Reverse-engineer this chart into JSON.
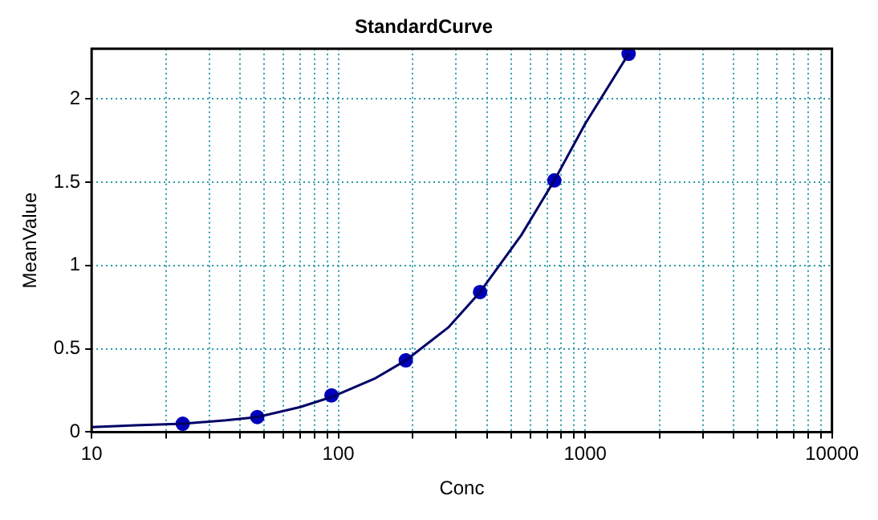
{
  "chart_data": {
    "type": "scatter",
    "title": "StandardCurve",
    "xlabel": "Conc",
    "ylabel": "MeanValue",
    "log": "x",
    "grid": true,
    "legend": false,
    "xlim": [
      10,
      10000
    ],
    "ylim": [
      0,
      2.3
    ],
    "xticks": [
      10,
      {
        "value": 20,
        "label": null
      },
      {
        "value": 30,
        "label": null
      },
      {
        "value": 40,
        "label": null
      },
      {
        "value": 50,
        "label": null
      },
      {
        "value": 60,
        "label": null
      },
      {
        "value": 70,
        "label": null
      },
      {
        "value": 80,
        "label": null
      },
      {
        "value": 90,
        "label": null
      },
      100,
      {
        "value": 200,
        "label": null
      },
      {
        "value": 300,
        "label": null
      },
      {
        "value": 400,
        "label": null
      },
      {
        "value": 500,
        "label": null
      },
      {
        "value": 600,
        "label": null
      },
      {
        "value": 700,
        "label": null
      },
      {
        "value": 800,
        "label": null
      },
      {
        "value": 900,
        "label": null
      },
      1000,
      {
        "value": 2000,
        "label": null
      },
      {
        "value": 3000,
        "label": null
      },
      {
        "value": 4000,
        "label": null
      },
      {
        "value": 5000,
        "label": null
      },
      {
        "value": 6000,
        "label": null
      },
      {
        "value": 7000,
        "label": null
      },
      {
        "value": 8000,
        "label": null
      },
      {
        "value": 9000,
        "label": null
      },
      10000
    ],
    "yticks": [
      0,
      0.5,
      1,
      1.5,
      2
    ],
    "series": [
      {
        "type": "line",
        "marker": "none",
        "line_style": "solid",
        "color": "#000066",
        "x": [
          10,
          15,
          23.4,
          35,
          46.9,
          70,
          93.75,
          140,
          187.5,
          280,
          375,
          550,
          750,
          1000,
          1500
        ],
        "values": [
          0.03,
          0.04,
          0.05,
          0.07,
          0.09,
          0.15,
          0.21,
          0.32,
          0.43,
          0.63,
          0.84,
          1.18,
          1.51,
          1.85,
          2.27
        ]
      },
      {
        "marker": "circle",
        "color": "#0000bb",
        "x": [
          23.4,
          46.9,
          93.75,
          187.5,
          375,
          750,
          1500
        ],
        "values": [
          0.05,
          0.09,
          0.22,
          0.43,
          0.84,
          1.51,
          2.27
        ]
      }
    ]
  }
}
